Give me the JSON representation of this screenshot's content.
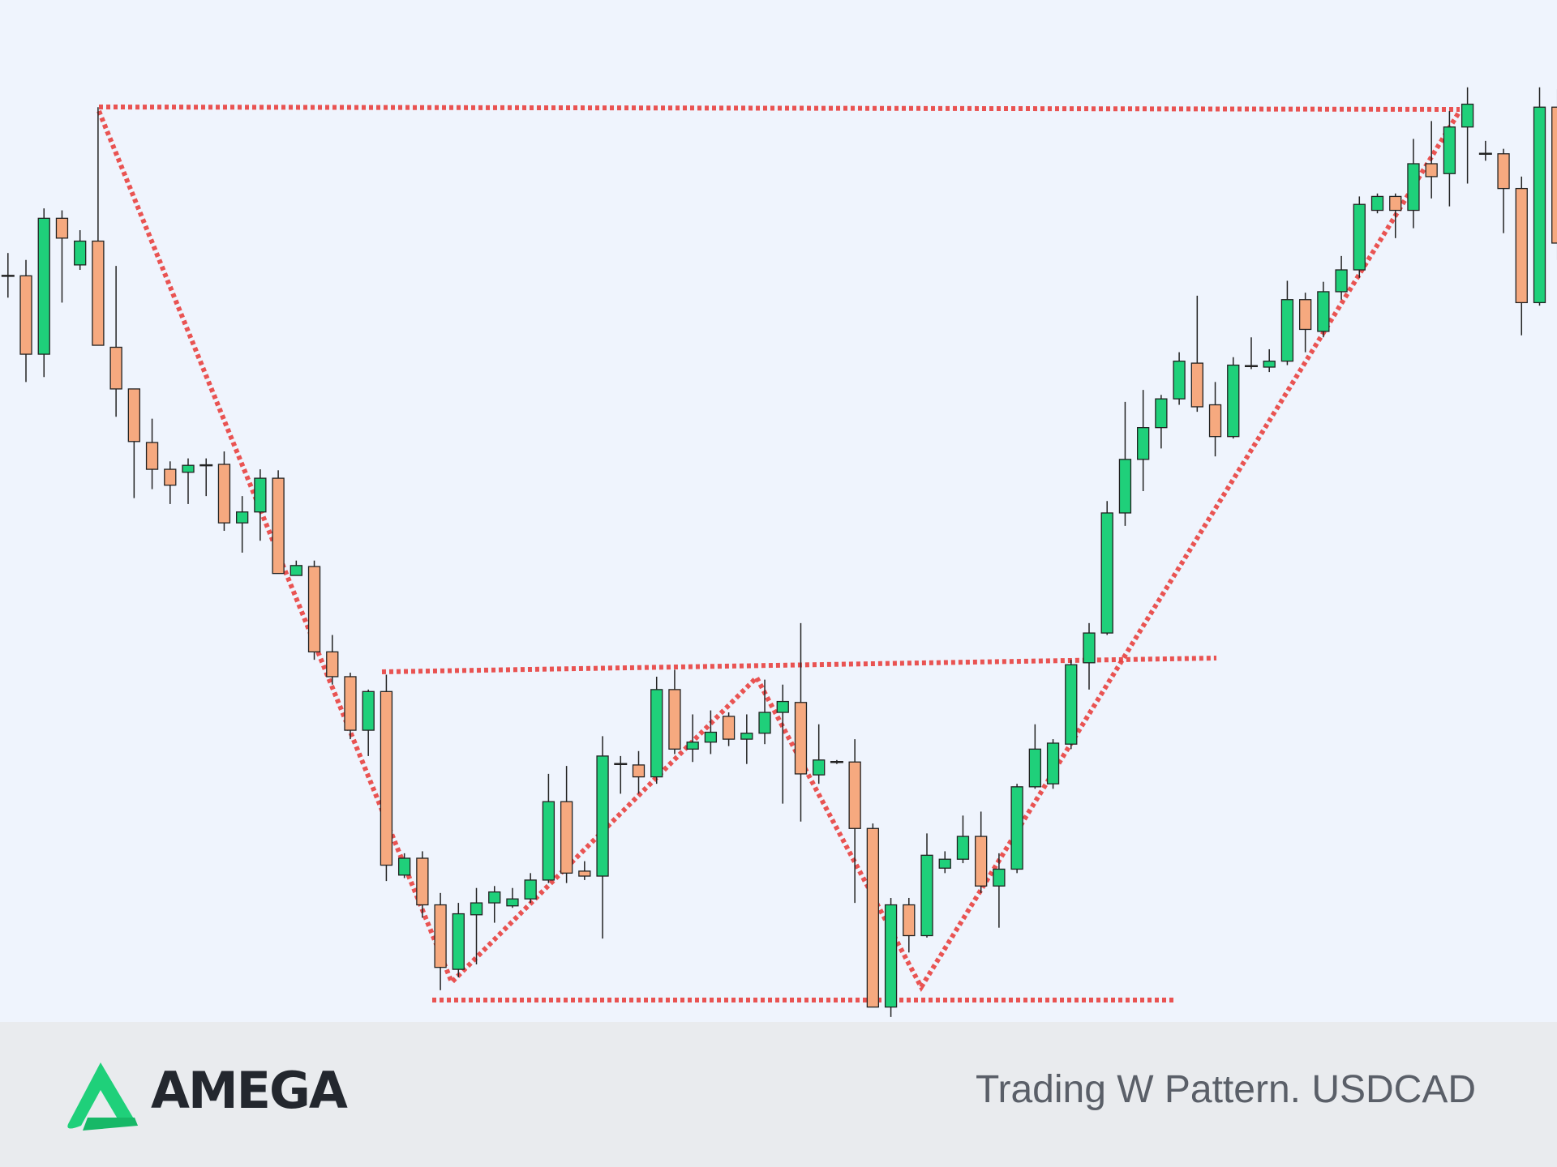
{
  "chart_data": {
    "type": "candlestick",
    "up_color": "#1fd07a",
    "down_color": "#f6a97f",
    "ylim": [
      0,
      1030
    ],
    "open": [
      752,
      752,
      673,
      810,
      763,
      787,
      680,
      638,
      584,
      557,
      554,
      561,
      562,
      503,
      514,
      548,
      450,
      459,
      373,
      348,
      294,
      333,
      148,
      165,
      118,
      53,
      108,
      120,
      117,
      124,
      143,
      222,
      152,
      147,
      260,
      259,
      247,
      335,
      275,
      282,
      308,
      285,
      291,
      312,
      322,
      249,
      262,
      262,
      195,
      15,
      118,
      87,
      155,
      164,
      187,
      137,
      154,
      237,
      240,
      280,
      362,
      392,
      513,
      567,
      599,
      628,
      664,
      622,
      590,
      661,
      660,
      666,
      728,
      696,
      736,
      758,
      818,
      832,
      818,
      865,
      855,
      902,
      875,
      875,
      840,
      725,
      922
    ],
    "high": [
      775,
      768,
      820,
      818,
      798,
      922,
      762,
      638,
      608,
      565,
      568,
      568,
      575,
      530,
      557,
      556,
      465,
      465,
      390,
      352,
      335,
      350,
      170,
      172,
      130,
      120,
      135,
      137,
      135,
      150,
      250,
      258,
      162,
      288,
      268,
      273,
      348,
      355,
      310,
      314,
      312,
      310,
      345,
      340,
      402,
      300,
      264,
      285,
      200,
      125,
      125,
      190,
      172,
      208,
      212,
      170,
      240,
      300,
      285,
      365,
      402,
      525,
      625,
      637,
      632,
      675,
      732,
      645,
      670,
      690,
      678,
      747,
      735,
      746,
      772,
      832,
      835,
      835,
      890,
      908,
      918,
      942,
      888,
      880,
      852,
      942,
      940
    ],
    "low": [
      730,
      645,
      650,
      725,
      758,
      682,
      610,
      528,
      537,
      522,
      522,
      530,
      495,
      473,
      485,
      452,
      450,
      365,
      340,
      285,
      268,
      142,
      145,
      105,
      32,
      45,
      58,
      100,
      115,
      120,
      140,
      140,
      143,
      84,
      230,
      230,
      240,
      270,
      262,
      270,
      278,
      260,
      280,
      220,
      202,
      240,
      260,
      120,
      15,
      5,
      70,
      85,
      150,
      160,
      130,
      95,
      150,
      235,
      235,
      275,
      335,
      390,
      500,
      535,
      578,
      622,
      615,
      570,
      588,
      658,
      655,
      662,
      675,
      690,
      728,
      750,
      815,
      790,
      800,
      830,
      822,
      845,
      868,
      795,
      692,
      722,
      768
    ],
    "close": [
      752,
      673,
      810,
      790,
      787,
      682,
      638,
      585,
      557,
      541,
      561,
      561,
      503,
      514,
      548,
      452,
      460,
      373,
      348,
      294,
      333,
      158,
      165,
      118,
      55,
      109,
      120,
      131,
      124,
      143,
      222,
      150,
      147,
      268,
      260,
      247,
      335,
      275,
      282,
      292,
      285,
      291,
      312,
      323,
      250,
      264,
      262,
      195,
      15,
      118,
      87,
      168,
      164,
      187,
      137,
      154,
      237,
      275,
      281,
      360,
      392,
      513,
      567,
      599,
      628,
      666,
      620,
      590,
      662,
      661,
      666,
      728,
      698,
      736,
      758,
      824,
      832,
      818,
      865,
      852,
      902,
      925,
      875,
      840,
      725,
      922,
      785
    ]
  },
  "footer": {
    "logo": "AMEGA",
    "caption": "Trading W Pattern. USDCAD"
  }
}
